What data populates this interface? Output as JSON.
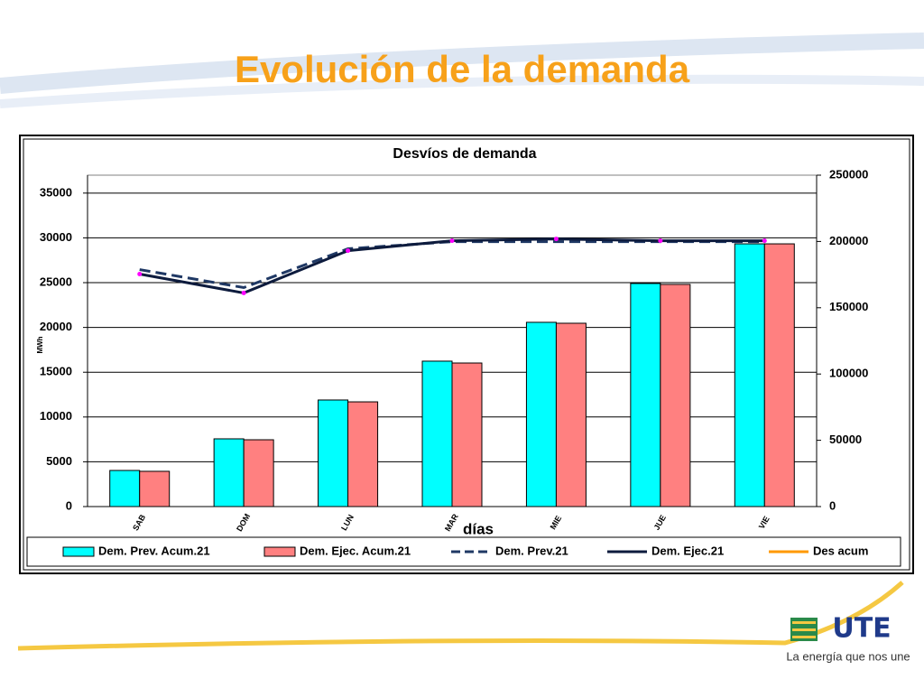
{
  "title": "Evolución de la demanda",
  "logo": {
    "name": "UTE",
    "slogan": "La energía que nos une"
  },
  "chart_data": {
    "type": "bar",
    "title": "Desvíos de demanda",
    "x_label": "días",
    "y_label": "MWh",
    "categories": [
      "SAB",
      "DOM",
      "LUN",
      "MAR",
      "MIE",
      "JUE",
      "VIE"
    ],
    "ylim": [
      0,
      37000
    ],
    "yticks": [
      0,
      5000,
      10000,
      15000,
      20000,
      25000,
      30000,
      35000
    ],
    "y2lim": [
      0,
      250000
    ],
    "y2ticks": [
      0,
      50000,
      100000,
      150000,
      200000,
      250000
    ],
    "grid": true,
    "legend": "bottom",
    "series": [
      {
        "name": "Dem. Prev. Acum.21",
        "type": "bar",
        "axis": "y2",
        "color": "#00ffff",
        "values": [
          27250,
          51100,
          80400,
          109700,
          139000,
          168300,
          198200
        ]
      },
      {
        "name": "Dem. Ejec. Acum.21",
        "type": "bar",
        "axis": "y2",
        "color": "#ff8080",
        "values": [
          26600,
          50400,
          79000,
          108300,
          138300,
          167600,
          198200
        ]
      },
      {
        "name": "Dem. Prev.21",
        "type": "line",
        "style": "dashed",
        "color": "#1f3864",
        "values": [
          26460,
          24450,
          28780,
          29580,
          29580,
          29580,
          29580
        ]
      },
      {
        "name": "Dem. Ejec.21",
        "type": "line",
        "style": "solid",
        "color": "#0d1b3d",
        "marker_color": "#ff00ff",
        "values": [
          25960,
          23850,
          28570,
          29680,
          29880,
          29680,
          29680
        ]
      },
      {
        "name": "Des acum",
        "type": "line",
        "style": "solid",
        "color": "#ff9900",
        "values": [
          null,
          null,
          null,
          null,
          null,
          null,
          null
        ]
      }
    ]
  }
}
